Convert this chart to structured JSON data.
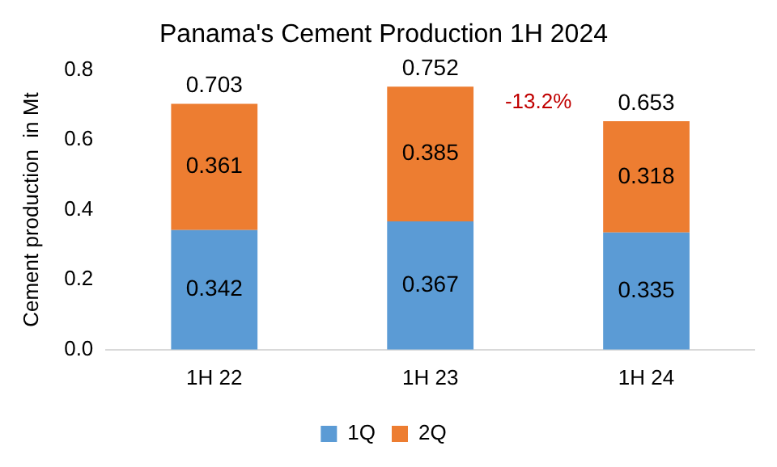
{
  "chart_data": {
    "type": "bar",
    "title": "Panama's Cement Production 1H 2024",
    "ylabel": "Cement production  in Mt",
    "categories": [
      "1H 22",
      "1H 23",
      "1H 24"
    ],
    "series": [
      {
        "name": "1Q",
        "color": "#5b9bd5",
        "values": [
          0.342,
          0.367,
          0.335
        ]
      },
      {
        "name": "2Q",
        "color": "#ed7d31",
        "values": [
          0.361,
          0.385,
          0.318
        ]
      }
    ],
    "stacked": true,
    "data_labels": true,
    "totals": [
      "0.703",
      "0.752",
      "0.653"
    ],
    "annotations": [
      "-13.2%"
    ],
    "ylim": [
      0,
      0.8
    ],
    "yticks": [
      {
        "value": 0,
        "label": "0.0"
      },
      {
        "value": 0.2,
        "label": "0.2"
      },
      {
        "value": 0.4,
        "label": "0.4"
      },
      {
        "value": 0.6,
        "label": "0.6"
      },
      {
        "value": 0.8,
        "label": "0.8"
      }
    ],
    "grid": false,
    "legend": "bottom"
  }
}
